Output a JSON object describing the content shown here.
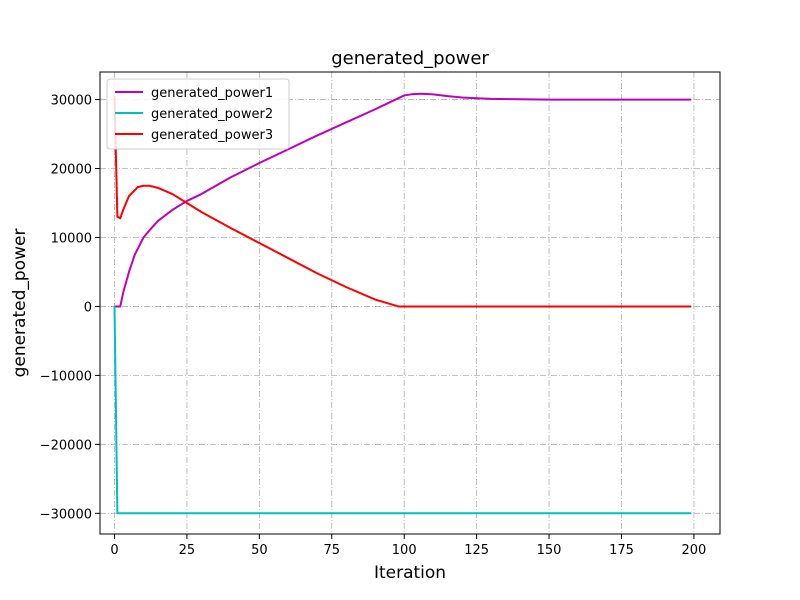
{
  "chart_data": {
    "type": "line",
    "title": "generated_power",
    "xlabel": "Iteration",
    "ylabel": "generated_power",
    "xlim": [
      -5,
      209
    ],
    "ylim": [
      -33000,
      34000
    ],
    "xticks": [
      0,
      25,
      50,
      75,
      100,
      125,
      150,
      175,
      200
    ],
    "yticks": [
      -30000,
      -20000,
      -10000,
      0,
      10000,
      20000,
      30000
    ],
    "ytick_labels": [
      "−30000",
      "−20000",
      "−10000",
      "0",
      "10000",
      "20000",
      "30000"
    ],
    "grid": true,
    "legend_position": "top-left",
    "series": [
      {
        "name": "generated_power1",
        "color": "#bf00bf",
        "x": [
          0,
          1,
          2,
          3,
          5,
          7,
          10,
          12,
          15,
          20,
          25,
          30,
          40,
          50,
          60,
          70,
          80,
          90,
          98,
          100,
          103,
          106,
          110,
          115,
          120,
          125,
          130,
          140,
          150,
          160,
          175,
          199
        ],
        "y": [
          0,
          0,
          0,
          2000,
          5000,
          7500,
          10000,
          11000,
          12400,
          14000,
          15300,
          16300,
          18700,
          20800,
          22800,
          24800,
          26700,
          28600,
          30200,
          30600,
          30800,
          30850,
          30750,
          30500,
          30300,
          30200,
          30100,
          30050,
          30000,
          30000,
          30000,
          30000
        ]
      },
      {
        "name": "generated_power2",
        "color": "#00bfbf",
        "x": [
          0,
          1,
          2,
          10,
          50,
          100,
          150,
          199
        ],
        "y": [
          0,
          -30000,
          -30000,
          -30000,
          -30000,
          -30000,
          -30000,
          -30000
        ]
      },
      {
        "name": "generated_power3",
        "color": "#ff0000",
        "x": [
          0,
          1,
          2,
          3,
          5,
          8,
          10,
          12,
          15,
          20,
          25,
          30,
          40,
          50,
          60,
          70,
          80,
          90,
          98,
          100,
          150,
          199
        ],
        "y": [
          30500,
          13000,
          12800,
          14000,
          16000,
          17300,
          17500,
          17500,
          17200,
          16300,
          15000,
          13700,
          11400,
          9200,
          7000,
          4800,
          2800,
          1000,
          0,
          0,
          0,
          0
        ]
      }
    ]
  }
}
